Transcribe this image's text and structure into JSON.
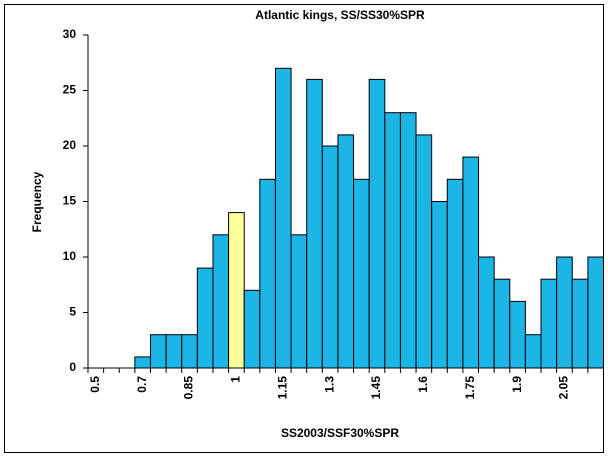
{
  "chart_data": {
    "type": "bar",
    "title": "Atlantic kings, SS/SS30%SPR",
    "x_label": "SS2003/SSF30%SPR",
    "y_label": "Frequency",
    "categories": [
      "0.5",
      null,
      null,
      "0.7",
      null,
      null,
      "0.85",
      null,
      null,
      "1",
      null,
      null,
      "1.15",
      null,
      null,
      "1.3",
      null,
      null,
      "1.45",
      null,
      null,
      "1.6",
      null,
      null,
      "1.75",
      null,
      null,
      "1.9",
      null,
      null,
      "2.05",
      null,
      null
    ],
    "values": [
      0,
      0,
      0,
      1,
      3,
      3,
      3,
      9,
      12,
      14,
      7,
      17,
      27,
      12,
      26,
      20,
      21,
      17,
      26,
      23,
      23,
      21,
      15,
      17,
      19,
      10,
      8,
      6,
      3,
      8,
      10,
      8,
      10
    ],
    "color": "#1bb5e6",
    "highlight": {
      "index": 9,
      "color": "#ffff99"
    },
    "ylim": [
      0,
      30
    ],
    "yticks": [
      0,
      5,
      10,
      15,
      20,
      25,
      30
    ],
    "grid": false
  }
}
